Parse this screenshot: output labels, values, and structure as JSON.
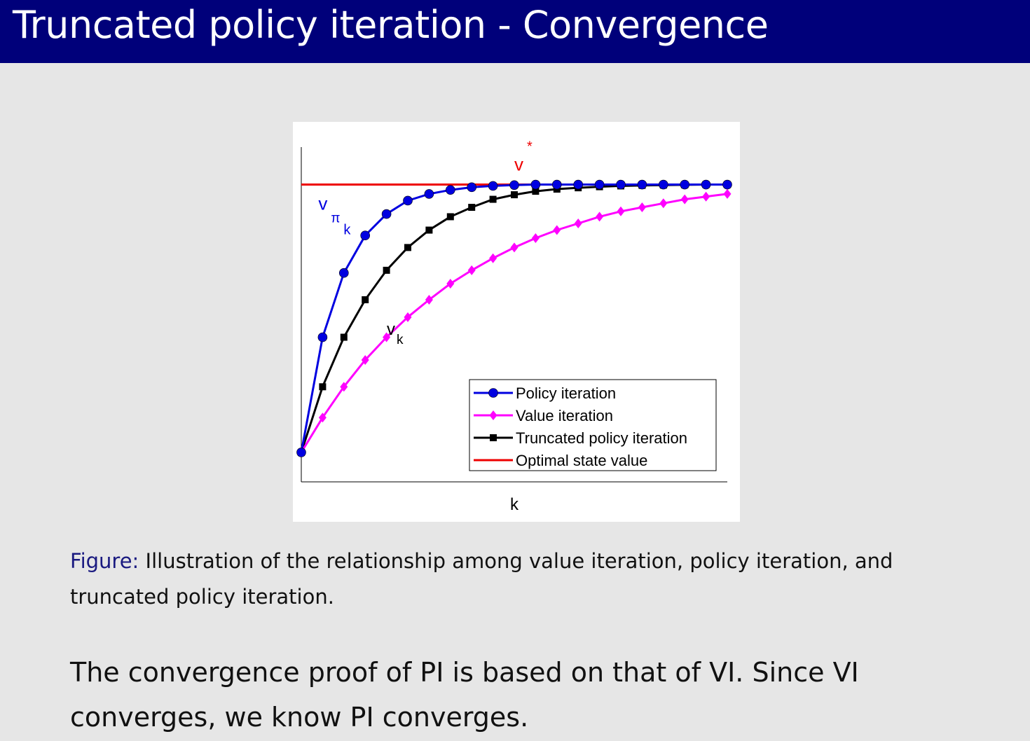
{
  "slide": {
    "title": "Truncated policy iteration - Convergence",
    "caption_label": "Figure:",
    "caption_text": "Illustration of the relationship among value iteration, policy iteration, and truncated policy iteration.",
    "body_text": "The convergence proof of PI is based on that of VI. Since VI converges, we know PI converges."
  },
  "chart_data": {
    "type": "line",
    "title": "",
    "xlabel": "k",
    "ylabel": "",
    "xlim": [
      0,
      20
    ],
    "ylim": [
      -0.11,
      1.14
    ],
    "grid": false,
    "legend_position": "bottom-right",
    "x": [
      0,
      1,
      2,
      3,
      4,
      5,
      6,
      7,
      8,
      9,
      10,
      11,
      12,
      13,
      14,
      15,
      16,
      17,
      18,
      19,
      20
    ],
    "series": [
      {
        "name": "Policy iteration",
        "color": "#0000e0",
        "marker": "circle",
        "values": [
          0,
          0.43,
          0.67,
          0.81,
          0.89,
          0.94,
          0.965,
          0.98,
          0.99,
          0.995,
          0.998,
          1,
          1,
          1,
          1,
          1,
          1,
          1,
          1,
          1,
          1
        ]
      },
      {
        "name": "Value iteration",
        "color": "#ff00ff",
        "marker": "diamond",
        "values": [
          0,
          0.13,
          0.245,
          0.345,
          0.43,
          0.505,
          0.57,
          0.63,
          0.68,
          0.725,
          0.765,
          0.8,
          0.83,
          0.855,
          0.88,
          0.9,
          0.915,
          0.93,
          0.945,
          0.955,
          0.965
        ]
      },
      {
        "name": "Truncated policy iteration",
        "color": "#000000",
        "marker": "square",
        "values": [
          0,
          0.245,
          0.43,
          0.57,
          0.68,
          0.765,
          0.83,
          0.88,
          0.915,
          0.945,
          0.962,
          0.975,
          0.983,
          0.988,
          0.992,
          0.995,
          0.997,
          0.998,
          0.999,
          1,
          1
        ]
      },
      {
        "name": "Optimal state value",
        "color": "#ee0000",
        "marker": "none",
        "values": [
          1,
          1,
          1,
          1,
          1,
          1,
          1,
          1,
          1,
          1,
          1,
          1,
          1,
          1,
          1,
          1,
          1,
          1,
          1,
          1,
          1
        ]
      }
    ],
    "annotations": [
      {
        "text": "v",
        "sup": "*",
        "color": "#ee0000",
        "target": "optimal"
      },
      {
        "text": "v",
        "sub": "π",
        "subsub": "k",
        "color": "#0000e0",
        "target": "policy"
      },
      {
        "text": "v",
        "sub": "k",
        "color": "#000000",
        "target": "value"
      }
    ]
  }
}
